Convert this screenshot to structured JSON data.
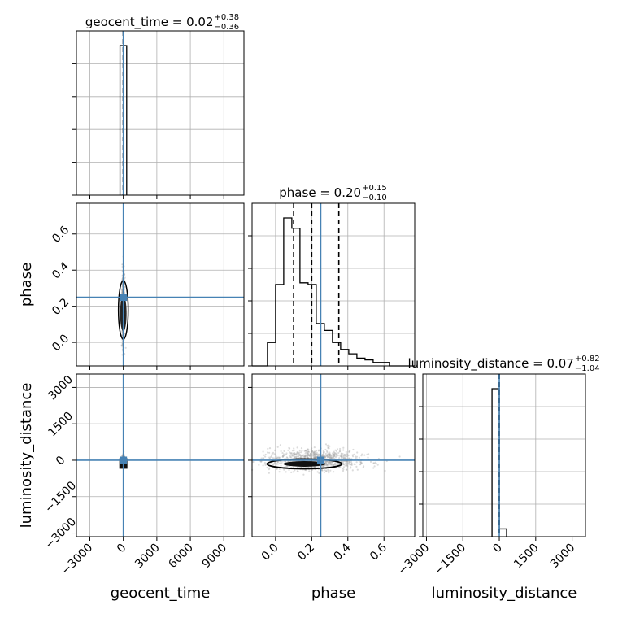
{
  "chart_data": {
    "type": "corner",
    "parameters": [
      {
        "name": "geocent_time",
        "label": "geocent_time",
        "median": "0.02",
        "plus": "+0.38",
        "minus": "−0.36",
        "range": [
          -4200,
          10800
        ],
        "ticks": [
          -3000,
          0,
          3000,
          6000,
          9000
        ],
        "tick_labels": [
          "−3000",
          "0",
          "3000",
          "6000",
          "9000"
        ],
        "truth": 0,
        "quantiles": [
          -0.34,
          0.02,
          0.4
        ],
        "hist": {
          "edges": [
            -300,
            300
          ],
          "counts": [
            1.0
          ]
        }
      },
      {
        "name": "phase",
        "label": "phase",
        "median": "0.20",
        "plus": "+0.15",
        "minus": "−0.10",
        "range": [
          -0.13,
          0.77
        ],
        "ticks": [
          0.0,
          0.2,
          0.4,
          0.6
        ],
        "tick_labels": [
          "0.0",
          "0.2",
          "0.4",
          "0.6"
        ],
        "truth": 0.25,
        "quantiles": [
          0.1,
          0.2,
          0.35
        ],
        "hist": {
          "edges": [
            -0.13,
            -0.09,
            -0.045,
            0.0,
            0.045,
            0.09,
            0.135,
            0.18,
            0.225,
            0.27,
            0.315,
            0.36,
            0.405,
            0.45,
            0.495,
            0.54,
            0.585,
            0.63,
            0.675,
            0.72,
            0.77
          ],
          "counts": [
            0.0,
            0.0,
            0.135,
            0.47,
            0.855,
            0.795,
            0.48,
            0.47,
            0.245,
            0.205,
            0.135,
            0.095,
            0.07,
            0.045,
            0.035,
            0.02,
            0.02,
            0.0,
            0.0,
            0.0
          ]
        }
      },
      {
        "name": "luminosity_distance",
        "label": "luminosity_distance",
        "median": "0.07",
        "plus": "+0.82",
        "minus": "−1.04",
        "range": [
          -3150,
          3550
        ],
        "ticks": [
          -3000,
          -1500,
          0,
          1500,
          3000
        ],
        "tick_labels": [
          "−3000",
          "−1500",
          "0",
          "1500",
          "3000"
        ],
        "truth": 0,
        "quantiles": [
          -0.97,
          0.07,
          0.89
        ],
        "hist": {
          "edges": [
            -300,
            0,
            300
          ],
          "counts": [
            0.95,
            0.05
          ]
        }
      }
    ],
    "truth_color": "#4682b4",
    "grid": true
  }
}
